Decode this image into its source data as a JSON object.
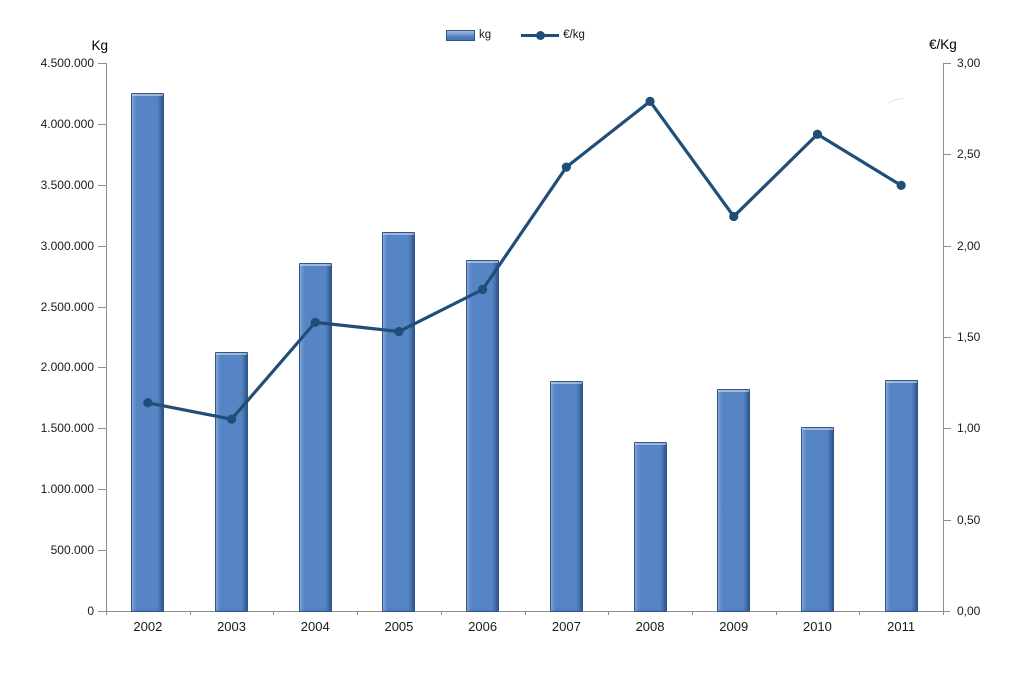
{
  "chart_data": {
    "type": "bar",
    "subtype": "combo-bar-line",
    "title": "",
    "categories": [
      "2002",
      "2003",
      "2004",
      "2005",
      "2006",
      "2007",
      "2008",
      "2009",
      "2010",
      "2011"
    ],
    "series": [
      {
        "name": "kg",
        "type": "bar",
        "axis": "left",
        "values": [
          4250000,
          2130000,
          2855000,
          3110000,
          2880000,
          1885000,
          1390000,
          1820000,
          1510000,
          1900000
        ],
        "color": "#5585C4",
        "border_color": "#2F5788"
      },
      {
        "name": "€/kg",
        "type": "line",
        "axis": "right",
        "values": [
          1.14,
          1.05,
          1.58,
          1.53,
          1.76,
          2.43,
          2.79,
          2.16,
          2.61,
          2.33
        ],
        "color": "#1F4E79",
        "marker": "circle"
      }
    ],
    "left_axis": {
      "title": "Kg",
      "min": 0,
      "max": 4500000,
      "step": 500000,
      "tick_labels": [
        "4.500.000",
        "4.000.000",
        "3.500.000",
        "3.000.000",
        "2.500.000",
        "2.000.000",
        "1.500.000",
        "1.000.000",
        "500.000",
        "0"
      ]
    },
    "right_axis": {
      "title": "€/Kg",
      "min": 0,
      "max": 3,
      "step": 0.5,
      "tick_labels": [
        "3,00",
        "2,50",
        "2,00",
        "1,50",
        "1,00",
        "0,50",
        "0,00"
      ]
    },
    "x_axis": {
      "tick_labels": [
        "2002",
        "2003",
        "2004",
        "2005",
        "2006",
        "2007",
        "2008",
        "2009",
        "2010",
        "2011"
      ]
    },
    "legend": {
      "position": "top",
      "entries": [
        {
          "label": "kg",
          "swatch": "bar",
          "color": "#5585C4"
        },
        {
          "label": "€/kg",
          "swatch": "line-marker",
          "color": "#1F4E79"
        }
      ]
    },
    "grid": "off",
    "colors": {
      "axis": "#8E8E8E",
      "text": "#1A1A1A",
      "bar_fill": "#5585C4",
      "bar_border": "#2F5788",
      "line": "#1F4E79"
    }
  }
}
